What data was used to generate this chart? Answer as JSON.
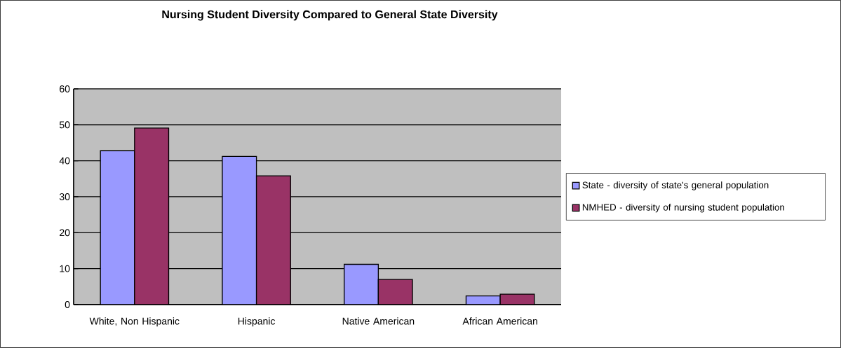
{
  "chart_data": {
    "type": "bar",
    "title": "Nursing Student Diversity Compared to General State Diversity",
    "categories": [
      "White, Non Hispanic",
      "Hispanic",
      "Native American",
      "African American"
    ],
    "series": [
      {
        "name": "State - diversity of state's general population",
        "color": "#9999ff",
        "values": [
          42.8,
          41.2,
          11.2,
          2.4
        ]
      },
      {
        "name": "NMHED - diversity of nursing student population",
        "color": "#993366",
        "values": [
          49.1,
          35.8,
          7.0,
          2.9
        ]
      }
    ],
    "ylim": [
      0,
      60
    ],
    "yticks": [
      0,
      10,
      20,
      30,
      40,
      50,
      60
    ],
    "grid": "y",
    "legend": "right"
  }
}
